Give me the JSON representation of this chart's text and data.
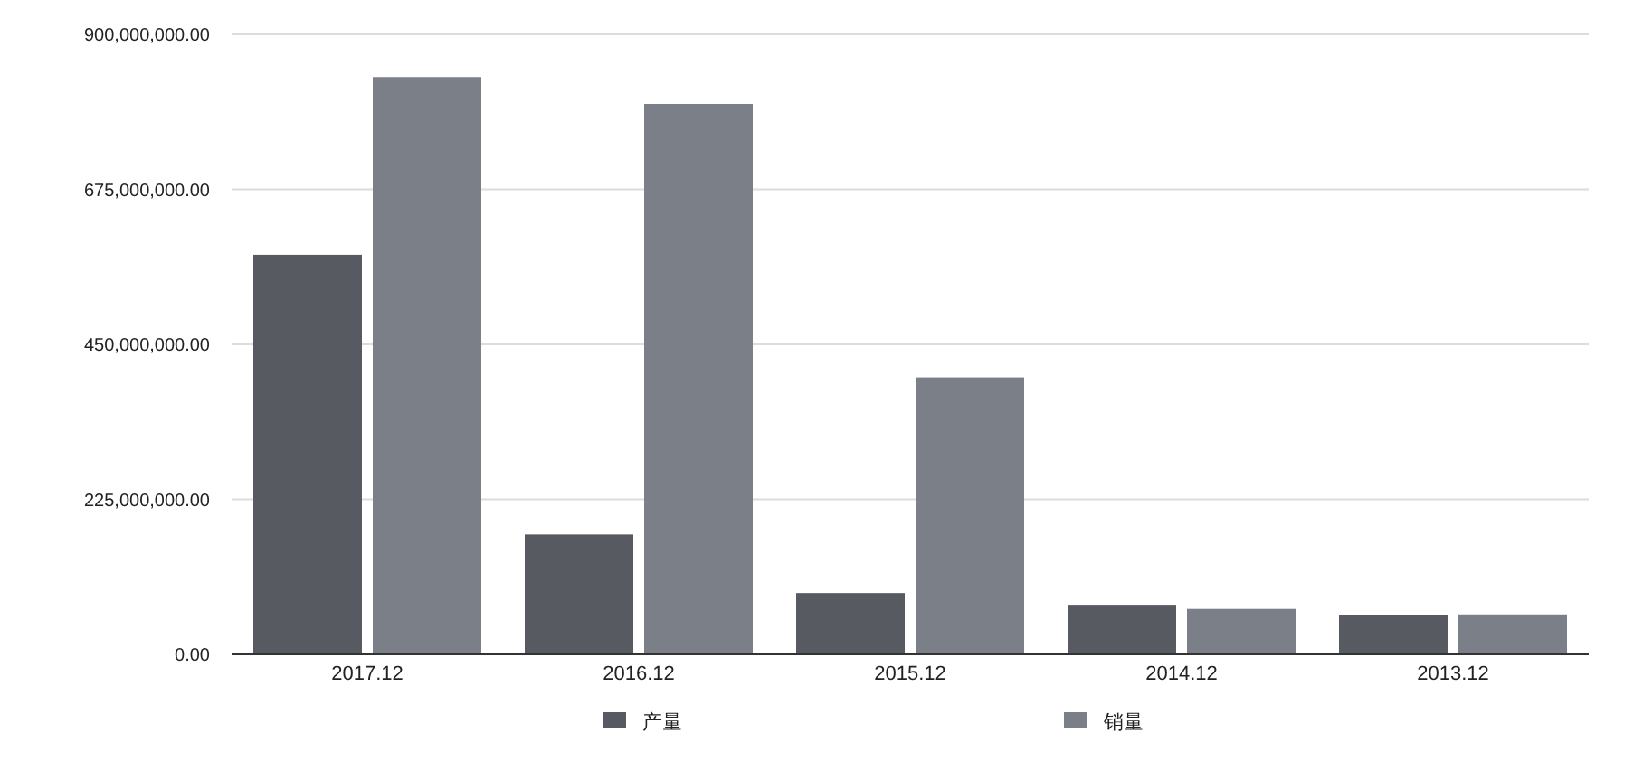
{
  "chart_data": {
    "type": "bar",
    "categories": [
      "2017.12",
      "2016.12",
      "2015.12",
      "2014.12",
      "2013.12"
    ],
    "series": [
      {
        "name": "产量",
        "color": "#575a61",
        "values": [
          580000000,
          174000000,
          89000000,
          72000000,
          57000000
        ]
      },
      {
        "name": "销量",
        "color": "#7b7f88",
        "values": [
          838000000,
          799000000,
          402000000,
          66000000,
          58000000
        ]
      }
    ],
    "ylim": [
      0,
      900000000
    ],
    "yticks": [
      {
        "value": 0,
        "label": "0.00"
      },
      {
        "value": 225000000,
        "label": "225,000,000.00"
      },
      {
        "value": 450000000,
        "label": "450,000,000.00"
      },
      {
        "value": 675000000,
        "label": "675,000,000.00"
      },
      {
        "value": 900000000,
        "label": "900,000,000.00"
      }
    ],
    "grid": "y",
    "legend": "bottom"
  }
}
